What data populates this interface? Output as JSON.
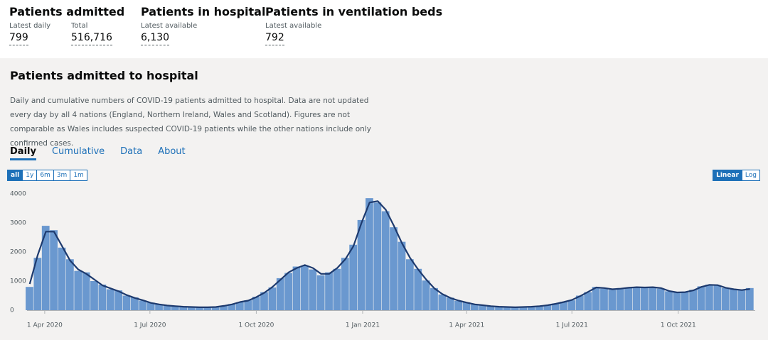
{
  "header": {
    "stats": [
      {
        "title": "Patients admitted",
        "items": [
          {
            "label": "Latest daily",
            "value": "799"
          },
          {
            "label": "Total",
            "value": "516,716"
          }
        ]
      },
      {
        "title": "Patients in hospital",
        "items": [
          {
            "label": "Latest available",
            "value": "6,130"
          }
        ]
      },
      {
        "title": "Patients in ventilation beds",
        "items": [
          {
            "label": "Latest available",
            "value": "792"
          }
        ]
      }
    ]
  },
  "card": {
    "title": "Patients admitted to hospital",
    "description": "Daily and cumulative numbers of COVID-19 patients admitted to hospital. Data are not updated every day by all 4 nations (England, Northern Ireland, Wales and Scotland). Figures are not comparable as Wales includes suspected COVID-19 patients while the other nations include only confirmed cases.",
    "tabs": [
      "Daily",
      "Cumulative",
      "Data",
      "About"
    ],
    "range_buttons": [
      "all",
      "1y",
      "6m",
      "3m",
      "1m"
    ],
    "scale_buttons": [
      "Linear",
      "Log"
    ]
  },
  "chart_data": {
    "type": "bar",
    "log_scale": false,
    "x": [
      "2020-03-19",
      "2020-03-26",
      "2020-04-02",
      "2020-04-09",
      "2020-04-16",
      "2020-04-23",
      "2020-04-30",
      "2020-05-07",
      "2020-05-14",
      "2020-05-21",
      "2020-05-28",
      "2020-06-04",
      "2020-06-11",
      "2020-06-18",
      "2020-06-25",
      "2020-07-02",
      "2020-07-09",
      "2020-07-16",
      "2020-07-23",
      "2020-07-30",
      "2020-08-06",
      "2020-08-13",
      "2020-08-20",
      "2020-08-27",
      "2020-09-03",
      "2020-09-10",
      "2020-09-17",
      "2020-09-24",
      "2020-10-01",
      "2020-10-08",
      "2020-10-15",
      "2020-10-22",
      "2020-10-29",
      "2020-11-05",
      "2020-11-12",
      "2020-11-19",
      "2020-11-26",
      "2020-12-03",
      "2020-12-10",
      "2020-12-17",
      "2020-12-24",
      "2020-12-31",
      "2021-01-07",
      "2021-01-14",
      "2021-01-21",
      "2021-01-28",
      "2021-02-04",
      "2021-02-11",
      "2021-02-18",
      "2021-02-25",
      "2021-03-04",
      "2021-03-11",
      "2021-03-18",
      "2021-03-25",
      "2021-04-01",
      "2021-04-08",
      "2021-04-15",
      "2021-04-22",
      "2021-04-29",
      "2021-05-06",
      "2021-05-13",
      "2021-05-20",
      "2021-05-27",
      "2021-06-03",
      "2021-06-10",
      "2021-06-17",
      "2021-06-24",
      "2021-07-01",
      "2021-07-08",
      "2021-07-15",
      "2021-07-22",
      "2021-07-29",
      "2021-08-05",
      "2021-08-12",
      "2021-08-19",
      "2021-08-26",
      "2021-09-02",
      "2021-09-09",
      "2021-09-16",
      "2021-09-23",
      "2021-09-30",
      "2021-10-07",
      "2021-10-14",
      "2021-10-21",
      "2021-10-28",
      "2021-11-04",
      "2021-11-11",
      "2021-11-18",
      "2021-11-25",
      "2021-12-02"
    ],
    "series": [
      {
        "type": "bar",
        "color": "#6a98cf",
        "values": [
          800,
          1800,
          2900,
          2750,
          2150,
          1750,
          1350,
          1300,
          1000,
          880,
          720,
          680,
          500,
          440,
          330,
          260,
          195,
          165,
          135,
          125,
          105,
          100,
          95,
          115,
          150,
          210,
          270,
          340,
          460,
          620,
          780,
          1100,
          1280,
          1500,
          1520,
          1400,
          1200,
          1300,
          1420,
          1800,
          2250,
          3100,
          3850,
          3700,
          3400,
          2850,
          2350,
          1750,
          1420,
          1020,
          760,
          540,
          430,
          320,
          270,
          195,
          175,
          135,
          125,
          105,
          100,
          115,
          120,
          145,
          165,
          225,
          290,
          340,
          500,
          620,
          800,
          740,
          700,
          760,
          780,
          800,
          770,
          800,
          740,
          650,
          620,
          610,
          700,
          820,
          880,
          850,
          760,
          730,
          680,
          760
        ]
      },
      {
        "type": "line",
        "color": "#1d3a6e",
        "values": [
          900,
          1900,
          2700,
          2700,
          2200,
          1700,
          1400,
          1250,
          1050,
          850,
          750,
          650,
          520,
          420,
          340,
          250,
          200,
          160,
          140,
          120,
          110,
          100,
          100,
          110,
          150,
          200,
          280,
          330,
          450,
          600,
          800,
          1050,
          1300,
          1450,
          1550,
          1450,
          1250,
          1250,
          1450,
          1750,
          2200,
          3000,
          3700,
          3750,
          3450,
          2900,
          2300,
          1800,
          1400,
          1050,
          750,
          550,
          420,
          330,
          260,
          200,
          170,
          140,
          120,
          110,
          100,
          110,
          120,
          140,
          170,
          220,
          280,
          350,
          480,
          630,
          780,
          760,
          720,
          740,
          770,
          790,
          780,
          790,
          760,
          660,
          610,
          620,
          680,
          800,
          870,
          860,
          770,
          720,
          690,
          730
        ]
      }
    ],
    "xlim": [
      "2020-03-13",
      "2021-12-09"
    ],
    "xticks": [
      {
        "value": "2020-04-01",
        "label": "1 Apr 2020"
      },
      {
        "value": "2020-07-01",
        "label": "1 Jul 2020"
      },
      {
        "value": "2020-10-01",
        "label": "1 Oct 2020"
      },
      {
        "value": "2021-01-01",
        "label": "1 Jan 2021"
      },
      {
        "value": "2021-04-01",
        "label": "1 Apr 2021"
      },
      {
        "value": "2021-07-01",
        "label": "1 Jul 2021"
      },
      {
        "value": "2021-10-01",
        "label": "1 Oct 2021"
      }
    ],
    "ylim": [
      0,
      4000
    ],
    "yticks": [
      0,
      1000,
      2000,
      3000,
      4000
    ],
    "grid": false
  }
}
